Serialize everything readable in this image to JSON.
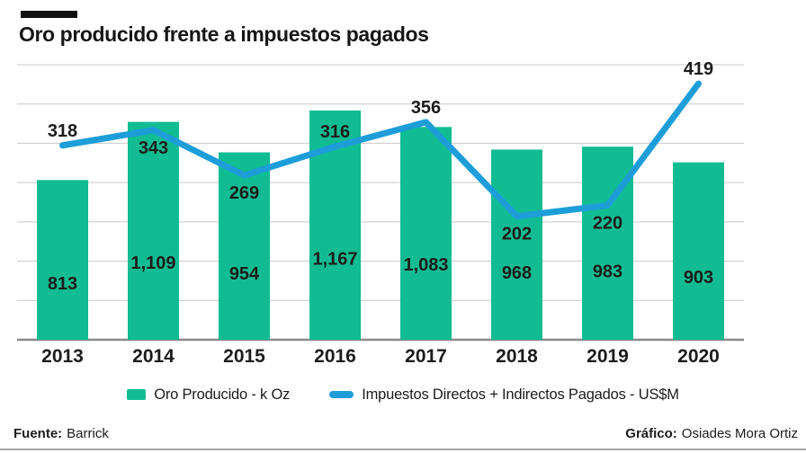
{
  "header": {
    "title": "Oro producido frente a impuestos pagados"
  },
  "chart_data": {
    "type": "bar+line",
    "title": "Oro producido frente a impuestos pagados",
    "categories": [
      "2013",
      "2014",
      "2015",
      "2016",
      "2017",
      "2018",
      "2019",
      "2020"
    ],
    "series": [
      {
        "name": "Oro Producido - k Oz",
        "type": "bar",
        "values": [
          813,
          1109,
          954,
          1167,
          1083,
          968,
          983,
          903
        ],
        "labels": [
          "813",
          "1,109",
          "954",
          "1,167",
          "1,083",
          "968",
          "983",
          "903"
        ],
        "color": "#12BC92",
        "axis_max": 1400
      },
      {
        "name": "Impuestos Directos + Indirectos Pagados - US$M",
        "type": "line",
        "values": [
          318,
          343,
          269,
          316,
          356,
          202,
          220,
          419
        ],
        "labels": [
          "318",
          "343",
          "269",
          "316",
          "356",
          "202",
          "220",
          "419"
        ],
        "label_placement": [
          "above",
          "below",
          "below",
          "above",
          "above",
          "below",
          "below",
          "above"
        ],
        "color": "#1D9ED9",
        "axis_max": 450
      }
    ],
    "grid": {
      "horizontal_lines": 8,
      "color": "#C9C9C9",
      "baseline_color": "#8A8A8A"
    },
    "legend_position": "bottom",
    "xlabel": "",
    "ylabel": ""
  },
  "legend": {
    "items": [
      {
        "label": "Oro Producido - k Oz",
        "swatch": "bar-square",
        "color": "#12BC92"
      },
      {
        "label": "Impuestos Directos + Indirectos Pagados - US$M",
        "swatch": "line-dash",
        "color": "#1D9ED9"
      }
    ]
  },
  "footer": {
    "source_label": "Fuente:",
    "source_value": "Barrick",
    "credit_label": "Gráfico:",
    "credit_value": "Osiades Mora Ortiz"
  }
}
